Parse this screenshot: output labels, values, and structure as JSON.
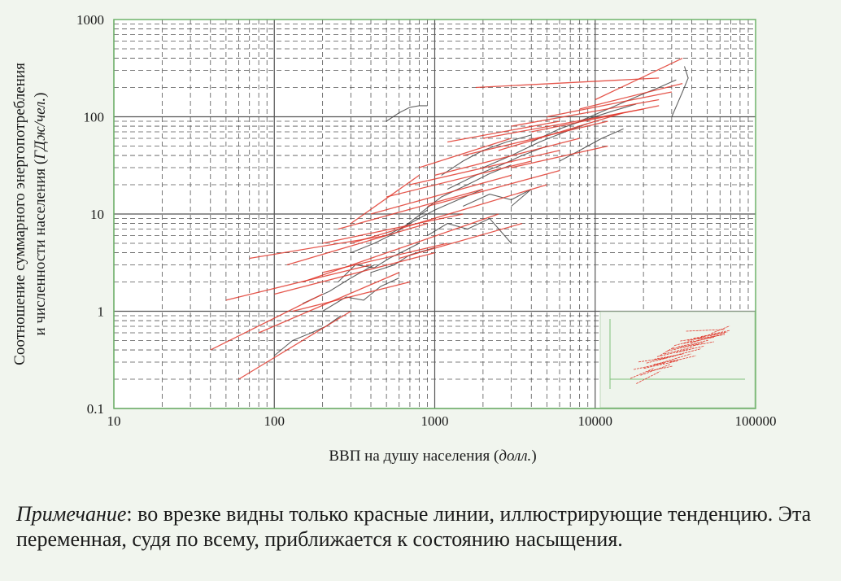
{
  "chart_data": {
    "type": "line",
    "xscale": "log",
    "yscale": "log",
    "xlim": [
      10,
      100000
    ],
    "ylim": [
      0.1,
      1000
    ],
    "x_ticks": [
      "10",
      "100",
      "1000",
      "10000",
      "100000"
    ],
    "y_ticks": [
      "0.1",
      "1",
      "10",
      "100",
      "1000"
    ],
    "xlabel_main": "ВВП на душу населения",
    "xlabel_unit": "долл.",
    "ylabel_line1": "Соотношение суммарного энергопотребления",
    "ylabel_line2_main": "и численности населения",
    "ylabel_line2_unit": "ГДж/чел.",
    "grid": true,
    "inset": true,
    "series": [
      {
        "kind": "observed",
        "color": "#3a3a3a",
        "segments": [
          [
            [
              250,
              2.0
            ],
            [
              320,
              3.0
            ],
            [
              420,
              2.8
            ],
            [
              520,
              3.5
            ],
            [
              650,
              4.2
            ],
            [
              800,
              5.0
            ]
          ],
          [
            [
              100,
              0.35
            ],
            [
              130,
              0.5
            ],
            [
              170,
              0.6
            ],
            [
              210,
              0.7
            ],
            [
              260,
              0.9
            ]
          ],
          [
            [
              150,
              1.2
            ],
            [
              220,
              1.6
            ],
            [
              300,
              2.2
            ],
            [
              420,
              3.0
            ]
          ],
          [
            [
              300,
              4.0
            ],
            [
              420,
              5.0
            ],
            [
              580,
              6.5
            ],
            [
              750,
              9.0
            ],
            [
              900,
              11.0
            ]
          ],
          [
            [
              500,
              6.0
            ],
            [
              700,
              8.0
            ],
            [
              1000,
              11.0
            ],
            [
              1400,
              14.0
            ],
            [
              2000,
              18.0
            ]
          ],
          [
            [
              800,
              10.0
            ],
            [
              1100,
              15.0
            ],
            [
              1600,
              20.0
            ],
            [
              2200,
              26.0
            ],
            [
              3000,
              32.0
            ]
          ],
          [
            [
              1200,
              18.0
            ],
            [
              1800,
              25.0
            ],
            [
              2600,
              32.0
            ],
            [
              3500,
              40.0
            ],
            [
              5000,
              50.0
            ]
          ],
          [
            [
              2000,
              30.0
            ],
            [
              3000,
              40.0
            ],
            [
              4500,
              55.0
            ],
            [
              6500,
              70.0
            ],
            [
              9000,
              85.0
            ]
          ],
          [
            [
              4000,
              55.0
            ],
            [
              6000,
              75.0
            ],
            [
              9000,
              95.0
            ],
            [
              13000,
              115.0
            ],
            [
              18000,
              135.0
            ]
          ],
          [
            [
              8000,
              90.0
            ],
            [
              12000,
              120.0
            ],
            [
              18000,
              160.0
            ],
            [
              25000,
              200.0
            ],
            [
              32000,
              240.0
            ]
          ],
          [
            [
              500,
              90.0
            ],
            [
              600,
              110.0
            ],
            [
              700,
              125.0
            ],
            [
              800,
              130.0
            ],
            [
              900,
              130.0
            ]
          ],
          [
            [
              30000,
              100.0
            ],
            [
              35000,
              180.0
            ],
            [
              38000,
              250.0
            ],
            [
              36000,
              330.0
            ]
          ],
          [
            [
              1500,
              12.0
            ],
            [
              2200,
              16.0
            ],
            [
              3000,
              14.0
            ],
            [
              4000,
              18.0
            ],
            [
              3000,
              12.0
            ]
          ],
          [
            [
              6000,
              35.0
            ],
            [
              8000,
              45.0
            ],
            [
              11000,
              60.0
            ],
            [
              15000,
              75.0
            ]
          ],
          [
            [
              900,
              6.0
            ],
            [
              1200,
              8.0
            ],
            [
              1600,
              7.0
            ],
            [
              2200,
              9.0
            ],
            [
              3000,
              5.0
            ]
          ],
          [
            [
              200,
              1.0
            ],
            [
              280,
              1.4
            ],
            [
              360,
              1.3
            ],
            [
              460,
              1.8
            ],
            [
              600,
              2.2
            ]
          ],
          [
            [
              400,
              2.5
            ],
            [
              560,
              3.0
            ],
            [
              700,
              3.8
            ],
            [
              1000,
              4.5
            ]
          ],
          [
            [
              1100,
              25.0
            ],
            [
              1500,
              35.0
            ],
            [
              2000,
              45.0
            ],
            [
              2800,
              55.0
            ],
            [
              4000,
              65.0
            ]
          ]
        ]
      },
      {
        "kind": "trend",
        "color": "#e03a2e",
        "segments": [
          [
            [
              40,
              0.4
            ],
            [
              200,
              1.5
            ]
          ],
          [
            [
              60,
              0.2
            ],
            [
              300,
              1.0
            ]
          ],
          [
            [
              50,
              1.3
            ],
            [
              400,
              3.0
            ]
          ],
          [
            [
              80,
              0.6
            ],
            [
              600,
              2.5
            ]
          ],
          [
            [
              100,
              1.5
            ],
            [
              1000,
              4.0
            ]
          ],
          [
            [
              120,
              3.0
            ],
            [
              900,
              8.0
            ]
          ],
          [
            [
              70,
              3.5
            ],
            [
              500,
              6.0
            ]
          ],
          [
            [
              150,
              2.0
            ],
            [
              2500,
              10.0
            ]
          ],
          [
            [
              200,
              5.0
            ],
            [
              1500,
              10.0
            ]
          ],
          [
            [
              250,
              7.0
            ],
            [
              2000,
              18.0
            ]
          ],
          [
            [
              300,
              5.0
            ],
            [
              5000,
              20.0
            ]
          ],
          [
            [
              400,
              10.0
            ],
            [
              3000,
              25.0
            ]
          ],
          [
            [
              500,
              15.0
            ],
            [
              4000,
              35.0
            ]
          ],
          [
            [
              300,
              8.0
            ],
            [
              800,
              25.0
            ]
          ],
          [
            [
              700,
              20.0
            ],
            [
              6000,
              45.0
            ]
          ],
          [
            [
              1000,
              25.0
            ],
            [
              8000,
              60.0
            ]
          ],
          [
            [
              800,
              30.0
            ],
            [
              3000,
              60.0
            ]
          ],
          [
            [
              1500,
              40.0
            ],
            [
              12000,
              90.0
            ]
          ],
          [
            [
              1200,
              55.0
            ],
            [
              6000,
              90.0
            ]
          ],
          [
            [
              2000,
              60.0
            ],
            [
              20000,
              120.0
            ]
          ],
          [
            [
              3000,
              80.0
            ],
            [
              25000,
              150.0
            ]
          ],
          [
            [
              5000,
              100.0
            ],
            [
              30000,
              180.0
            ]
          ],
          [
            [
              8000,
              120.0
            ],
            [
              35000,
              220.0
            ]
          ],
          [
            [
              10000,
              150.0
            ],
            [
              35000,
              400.0
            ]
          ],
          [
            [
              2500,
              45.0
            ],
            [
              15000,
              110.0
            ]
          ],
          [
            [
              4000,
              70.0
            ],
            [
              25000,
              130.0
            ]
          ],
          [
            [
              600,
              3.5
            ],
            [
              3500,
              8.0
            ]
          ],
          [
            [
              200,
              2.5
            ],
            [
              1200,
              5.0
            ]
          ],
          [
            [
              1800,
              200.0
            ],
            [
              25000,
              250.0
            ]
          ],
          [
            [
              3000,
              30.0
            ],
            [
              12000,
              50.0
            ]
          ],
          [
            [
              900,
              12.0
            ],
            [
              6000,
              28.0
            ]
          ],
          [
            [
              130,
              1.0
            ],
            [
              700,
              2.0
            ]
          ]
        ]
      }
    ]
  },
  "note": {
    "label": "Примечание",
    "text": ": во врезке видны только красные линии, иллюстрирующие тенденцию. Эта переменная, судя по всему, приближается к состоянию насыщения."
  }
}
